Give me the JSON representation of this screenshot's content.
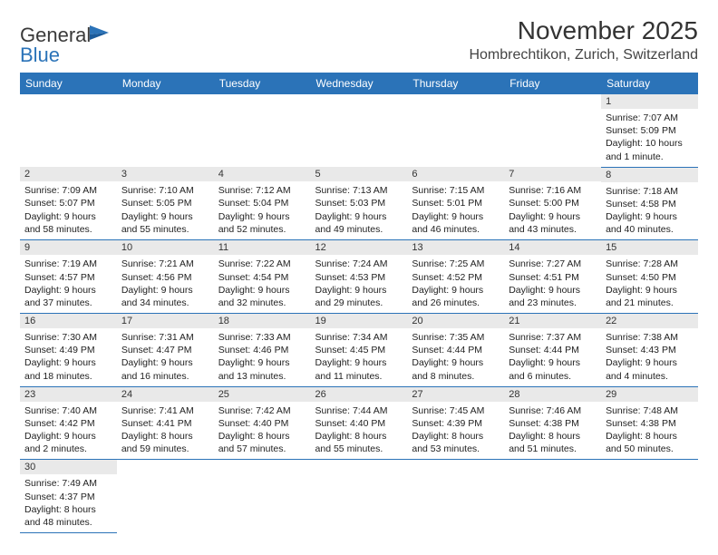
{
  "brand": {
    "name_part1": "General",
    "name_part2": "Blue"
  },
  "title": "November 2025",
  "location": "Hombrechtikon, Zurich, Switzerland",
  "colors": {
    "header_bg": "#2b73b8",
    "header_text": "#ffffff",
    "daynum_bg": "#e9e9e9",
    "border": "#2b73b8",
    "text": "#222222",
    "brand_gray": "#3a3a3a",
    "brand_blue": "#2b73b8"
  },
  "weekdays": [
    "Sunday",
    "Monday",
    "Tuesday",
    "Wednesday",
    "Thursday",
    "Friday",
    "Saturday"
  ],
  "weeks": [
    [
      null,
      null,
      null,
      null,
      null,
      null,
      {
        "n": "1",
        "sunrise": "Sunrise: 7:07 AM",
        "sunset": "Sunset: 5:09 PM",
        "daylight1": "Daylight: 10 hours",
        "daylight2": "and 1 minute."
      }
    ],
    [
      {
        "n": "2",
        "sunrise": "Sunrise: 7:09 AM",
        "sunset": "Sunset: 5:07 PM",
        "daylight1": "Daylight: 9 hours",
        "daylight2": "and 58 minutes."
      },
      {
        "n": "3",
        "sunrise": "Sunrise: 7:10 AM",
        "sunset": "Sunset: 5:05 PM",
        "daylight1": "Daylight: 9 hours",
        "daylight2": "and 55 minutes."
      },
      {
        "n": "4",
        "sunrise": "Sunrise: 7:12 AM",
        "sunset": "Sunset: 5:04 PM",
        "daylight1": "Daylight: 9 hours",
        "daylight2": "and 52 minutes."
      },
      {
        "n": "5",
        "sunrise": "Sunrise: 7:13 AM",
        "sunset": "Sunset: 5:03 PM",
        "daylight1": "Daylight: 9 hours",
        "daylight2": "and 49 minutes."
      },
      {
        "n": "6",
        "sunrise": "Sunrise: 7:15 AM",
        "sunset": "Sunset: 5:01 PM",
        "daylight1": "Daylight: 9 hours",
        "daylight2": "and 46 minutes."
      },
      {
        "n": "7",
        "sunrise": "Sunrise: 7:16 AM",
        "sunset": "Sunset: 5:00 PM",
        "daylight1": "Daylight: 9 hours",
        "daylight2": "and 43 minutes."
      },
      {
        "n": "8",
        "sunrise": "Sunrise: 7:18 AM",
        "sunset": "Sunset: 4:58 PM",
        "daylight1": "Daylight: 9 hours",
        "daylight2": "and 40 minutes."
      }
    ],
    [
      {
        "n": "9",
        "sunrise": "Sunrise: 7:19 AM",
        "sunset": "Sunset: 4:57 PM",
        "daylight1": "Daylight: 9 hours",
        "daylight2": "and 37 minutes."
      },
      {
        "n": "10",
        "sunrise": "Sunrise: 7:21 AM",
        "sunset": "Sunset: 4:56 PM",
        "daylight1": "Daylight: 9 hours",
        "daylight2": "and 34 minutes."
      },
      {
        "n": "11",
        "sunrise": "Sunrise: 7:22 AM",
        "sunset": "Sunset: 4:54 PM",
        "daylight1": "Daylight: 9 hours",
        "daylight2": "and 32 minutes."
      },
      {
        "n": "12",
        "sunrise": "Sunrise: 7:24 AM",
        "sunset": "Sunset: 4:53 PM",
        "daylight1": "Daylight: 9 hours",
        "daylight2": "and 29 minutes."
      },
      {
        "n": "13",
        "sunrise": "Sunrise: 7:25 AM",
        "sunset": "Sunset: 4:52 PM",
        "daylight1": "Daylight: 9 hours",
        "daylight2": "and 26 minutes."
      },
      {
        "n": "14",
        "sunrise": "Sunrise: 7:27 AM",
        "sunset": "Sunset: 4:51 PM",
        "daylight1": "Daylight: 9 hours",
        "daylight2": "and 23 minutes."
      },
      {
        "n": "15",
        "sunrise": "Sunrise: 7:28 AM",
        "sunset": "Sunset: 4:50 PM",
        "daylight1": "Daylight: 9 hours",
        "daylight2": "and 21 minutes."
      }
    ],
    [
      {
        "n": "16",
        "sunrise": "Sunrise: 7:30 AM",
        "sunset": "Sunset: 4:49 PM",
        "daylight1": "Daylight: 9 hours",
        "daylight2": "and 18 minutes."
      },
      {
        "n": "17",
        "sunrise": "Sunrise: 7:31 AM",
        "sunset": "Sunset: 4:47 PM",
        "daylight1": "Daylight: 9 hours",
        "daylight2": "and 16 minutes."
      },
      {
        "n": "18",
        "sunrise": "Sunrise: 7:33 AM",
        "sunset": "Sunset: 4:46 PM",
        "daylight1": "Daylight: 9 hours",
        "daylight2": "and 13 minutes."
      },
      {
        "n": "19",
        "sunrise": "Sunrise: 7:34 AM",
        "sunset": "Sunset: 4:45 PM",
        "daylight1": "Daylight: 9 hours",
        "daylight2": "and 11 minutes."
      },
      {
        "n": "20",
        "sunrise": "Sunrise: 7:35 AM",
        "sunset": "Sunset: 4:44 PM",
        "daylight1": "Daylight: 9 hours",
        "daylight2": "and 8 minutes."
      },
      {
        "n": "21",
        "sunrise": "Sunrise: 7:37 AM",
        "sunset": "Sunset: 4:44 PM",
        "daylight1": "Daylight: 9 hours",
        "daylight2": "and 6 minutes."
      },
      {
        "n": "22",
        "sunrise": "Sunrise: 7:38 AM",
        "sunset": "Sunset: 4:43 PM",
        "daylight1": "Daylight: 9 hours",
        "daylight2": "and 4 minutes."
      }
    ],
    [
      {
        "n": "23",
        "sunrise": "Sunrise: 7:40 AM",
        "sunset": "Sunset: 4:42 PM",
        "daylight1": "Daylight: 9 hours",
        "daylight2": "and 2 minutes."
      },
      {
        "n": "24",
        "sunrise": "Sunrise: 7:41 AM",
        "sunset": "Sunset: 4:41 PM",
        "daylight1": "Daylight: 8 hours",
        "daylight2": "and 59 minutes."
      },
      {
        "n": "25",
        "sunrise": "Sunrise: 7:42 AM",
        "sunset": "Sunset: 4:40 PM",
        "daylight1": "Daylight: 8 hours",
        "daylight2": "and 57 minutes."
      },
      {
        "n": "26",
        "sunrise": "Sunrise: 7:44 AM",
        "sunset": "Sunset: 4:40 PM",
        "daylight1": "Daylight: 8 hours",
        "daylight2": "and 55 minutes."
      },
      {
        "n": "27",
        "sunrise": "Sunrise: 7:45 AM",
        "sunset": "Sunset: 4:39 PM",
        "daylight1": "Daylight: 8 hours",
        "daylight2": "and 53 minutes."
      },
      {
        "n": "28",
        "sunrise": "Sunrise: 7:46 AM",
        "sunset": "Sunset: 4:38 PM",
        "daylight1": "Daylight: 8 hours",
        "daylight2": "and 51 minutes."
      },
      {
        "n": "29",
        "sunrise": "Sunrise: 7:48 AM",
        "sunset": "Sunset: 4:38 PM",
        "daylight1": "Daylight: 8 hours",
        "daylight2": "and 50 minutes."
      }
    ],
    [
      {
        "n": "30",
        "sunrise": "Sunrise: 7:49 AM",
        "sunset": "Sunset: 4:37 PM",
        "daylight1": "Daylight: 8 hours",
        "daylight2": "and 48 minutes."
      },
      null,
      null,
      null,
      null,
      null,
      null
    ]
  ]
}
